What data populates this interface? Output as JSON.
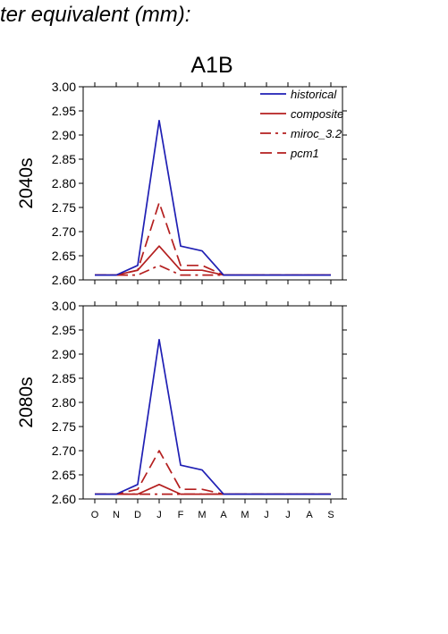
{
  "header_text": "ter equivalent (mm):",
  "chart_data": {
    "type": "line",
    "title": "A1B",
    "months": [
      "O",
      "N",
      "D",
      "J",
      "F",
      "M",
      "A",
      "M",
      "J",
      "J",
      "A",
      "S"
    ],
    "ylim": [
      2.6,
      3.0
    ],
    "yticks": [
      "3.00",
      "2.95",
      "2.90",
      "2.85",
      "2.80",
      "2.75",
      "2.70",
      "2.65",
      "2.60"
    ],
    "legend_position": "top-right",
    "legend": [
      {
        "label": "historical",
        "color": "#1f1fb4",
        "style": "solid"
      },
      {
        "label": "composite",
        "color": "#b41f1f",
        "style": "solid"
      },
      {
        "label": "miroc_3.2",
        "color": "#b41f1f",
        "style": "dashdot"
      },
      {
        "label": "pcm1",
        "color": "#b41f1f",
        "style": "dashed"
      }
    ],
    "panels": [
      {
        "ylabel": "2040s",
        "series": [
          {
            "name": "historical",
            "values": [
              2.61,
              2.61,
              2.63,
              2.93,
              2.67,
              2.66,
              2.61,
              2.61,
              2.61,
              2.61,
              2.61,
              2.61
            ]
          },
          {
            "name": "composite",
            "values": [
              2.61,
              2.61,
              2.62,
              2.67,
              2.62,
              2.62,
              2.61,
              2.61,
              2.61,
              2.61,
              2.61,
              2.61
            ]
          },
          {
            "name": "miroc_3.2",
            "values": [
              2.61,
              2.61,
              2.61,
              2.63,
              2.61,
              2.61,
              2.61,
              2.61,
              2.61,
              2.61,
              2.61,
              2.61
            ]
          },
          {
            "name": "pcm1",
            "values": [
              2.61,
              2.61,
              2.62,
              2.76,
              2.63,
              2.63,
              2.61,
              2.61,
              2.61,
              2.61,
              2.61,
              2.61
            ]
          }
        ]
      },
      {
        "ylabel": "2080s",
        "series": [
          {
            "name": "historical",
            "values": [
              2.61,
              2.61,
              2.63,
              2.93,
              2.67,
              2.66,
              2.61,
              2.61,
              2.61,
              2.61,
              2.61,
              2.61
            ]
          },
          {
            "name": "composite",
            "values": [
              2.61,
              2.61,
              2.61,
              2.63,
              2.61,
              2.61,
              2.61,
              2.61,
              2.61,
              2.61,
              2.61,
              2.61
            ]
          },
          {
            "name": "miroc_3.2",
            "values": [
              2.61,
              2.61,
              2.61,
              2.61,
              2.61,
              2.61,
              2.61,
              2.61,
              2.61,
              2.61,
              2.61,
              2.61
            ]
          },
          {
            "name": "pcm1",
            "values": [
              2.61,
              2.61,
              2.62,
              2.7,
              2.62,
              2.62,
              2.61,
              2.61,
              2.61,
              2.61,
              2.61,
              2.61
            ]
          }
        ]
      }
    ]
  }
}
